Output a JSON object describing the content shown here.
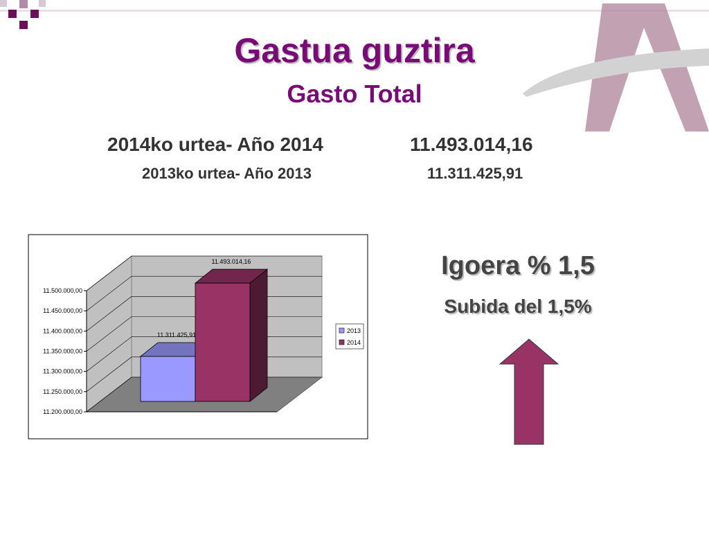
{
  "slide": {
    "title": "Gastua guztira",
    "subtitle": "Gasto Total",
    "rows": [
      {
        "label": "2014ko urtea- Año 2014",
        "value": "11.493.014,16"
      },
      {
        "label": "2013ko urtea- Año 2013",
        "value": "11.311.425,91"
      }
    ],
    "increase": "Igoera % 1,5",
    "increase_es": "Subida del 1,5%"
  },
  "chart_data": {
    "type": "bar",
    "categories": [
      null
    ],
    "series": [
      {
        "name": "2013",
        "color": "#9999ff",
        "values": [
          11311425.91
        ],
        "value_labels": [
          "11.311.425,91"
        ]
      },
      {
        "name": "2014",
        "color": "#993366",
        "values": [
          11493014.16
        ],
        "value_labels": [
          "11.493.014,16"
        ]
      }
    ],
    "ylim": [
      11200000,
      11500000
    ],
    "yticks": [
      {
        "value": 11200000,
        "label": "11.200.000,00"
      },
      {
        "value": 11250000,
        "label": "11.250.000,00"
      },
      {
        "value": 11300000,
        "label": "11.300.000,00"
      },
      {
        "value": 11350000,
        "label": "11.350.000,00"
      },
      {
        "value": 11400000,
        "label": "11.400.000,00"
      },
      {
        "value": 11450000,
        "label": "11.450.000,00"
      },
      {
        "value": 11500000,
        "label": "11.500.000,00"
      }
    ],
    "grid": true,
    "legend": "right"
  }
}
